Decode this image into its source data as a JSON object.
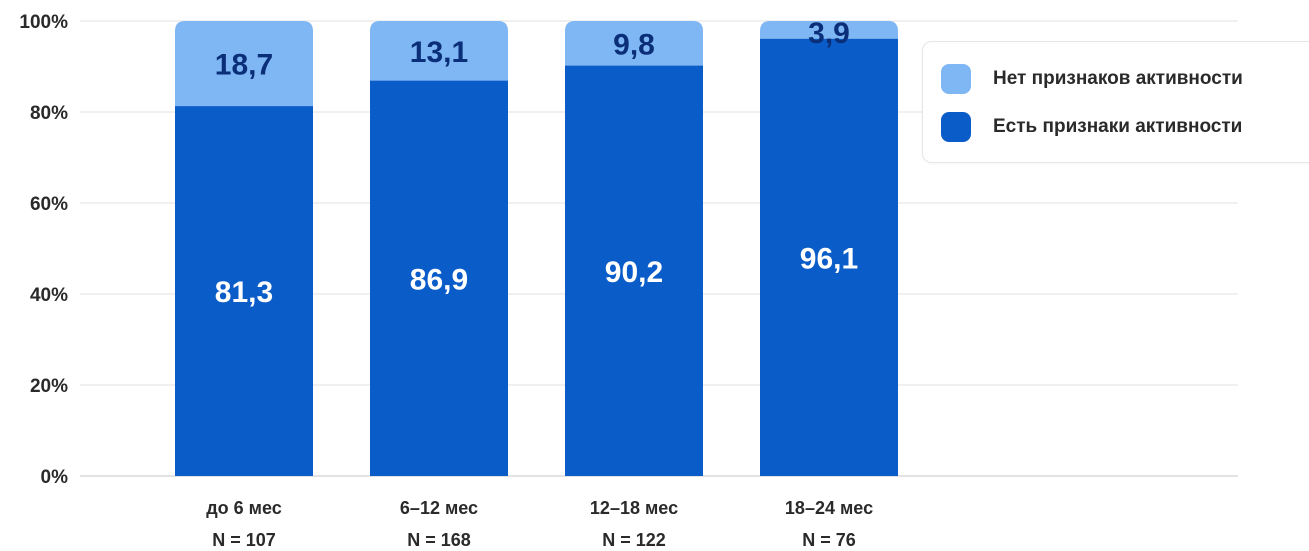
{
  "chart_data": {
    "type": "bar",
    "stacked": true,
    "categories": [
      "до 6 мес",
      "6–12 мес",
      "12–18 мес",
      "18–24 мес"
    ],
    "sample_sizes": [
      "N = 107",
      "N = 168",
      "N = 122",
      "N = 76"
    ],
    "series": [
      {
        "name": "Есть признаки активности",
        "values": [
          81.3,
          86.9,
          90.2,
          96.1
        ],
        "labels": [
          "81,3",
          "86,9",
          "90,2",
          "96,1"
        ],
        "color": "#0a5cc8"
      },
      {
        "name": "Нет признаков активности",
        "values": [
          18.7,
          13.1,
          9.8,
          3.9
        ],
        "labels": [
          "18,7",
          "13,1",
          "9,8",
          "3,9"
        ],
        "color": "#7fb6f4"
      }
    ],
    "yticks": [
      0,
      20,
      40,
      60,
      80,
      100
    ],
    "ytick_labels": [
      "0%",
      "20%",
      "40%",
      "60%",
      "80%",
      "100%"
    ],
    "ylim": [
      0,
      100
    ],
    "grid": true,
    "legend_position": "top-right",
    "title": "",
    "xlabel": "",
    "ylabel": ""
  },
  "legend": {
    "items": [
      {
        "label": "Нет признаков активности",
        "color": "#7fb6f4"
      },
      {
        "label": "Есть признаки активности",
        "color": "#0a5cc8"
      }
    ]
  }
}
